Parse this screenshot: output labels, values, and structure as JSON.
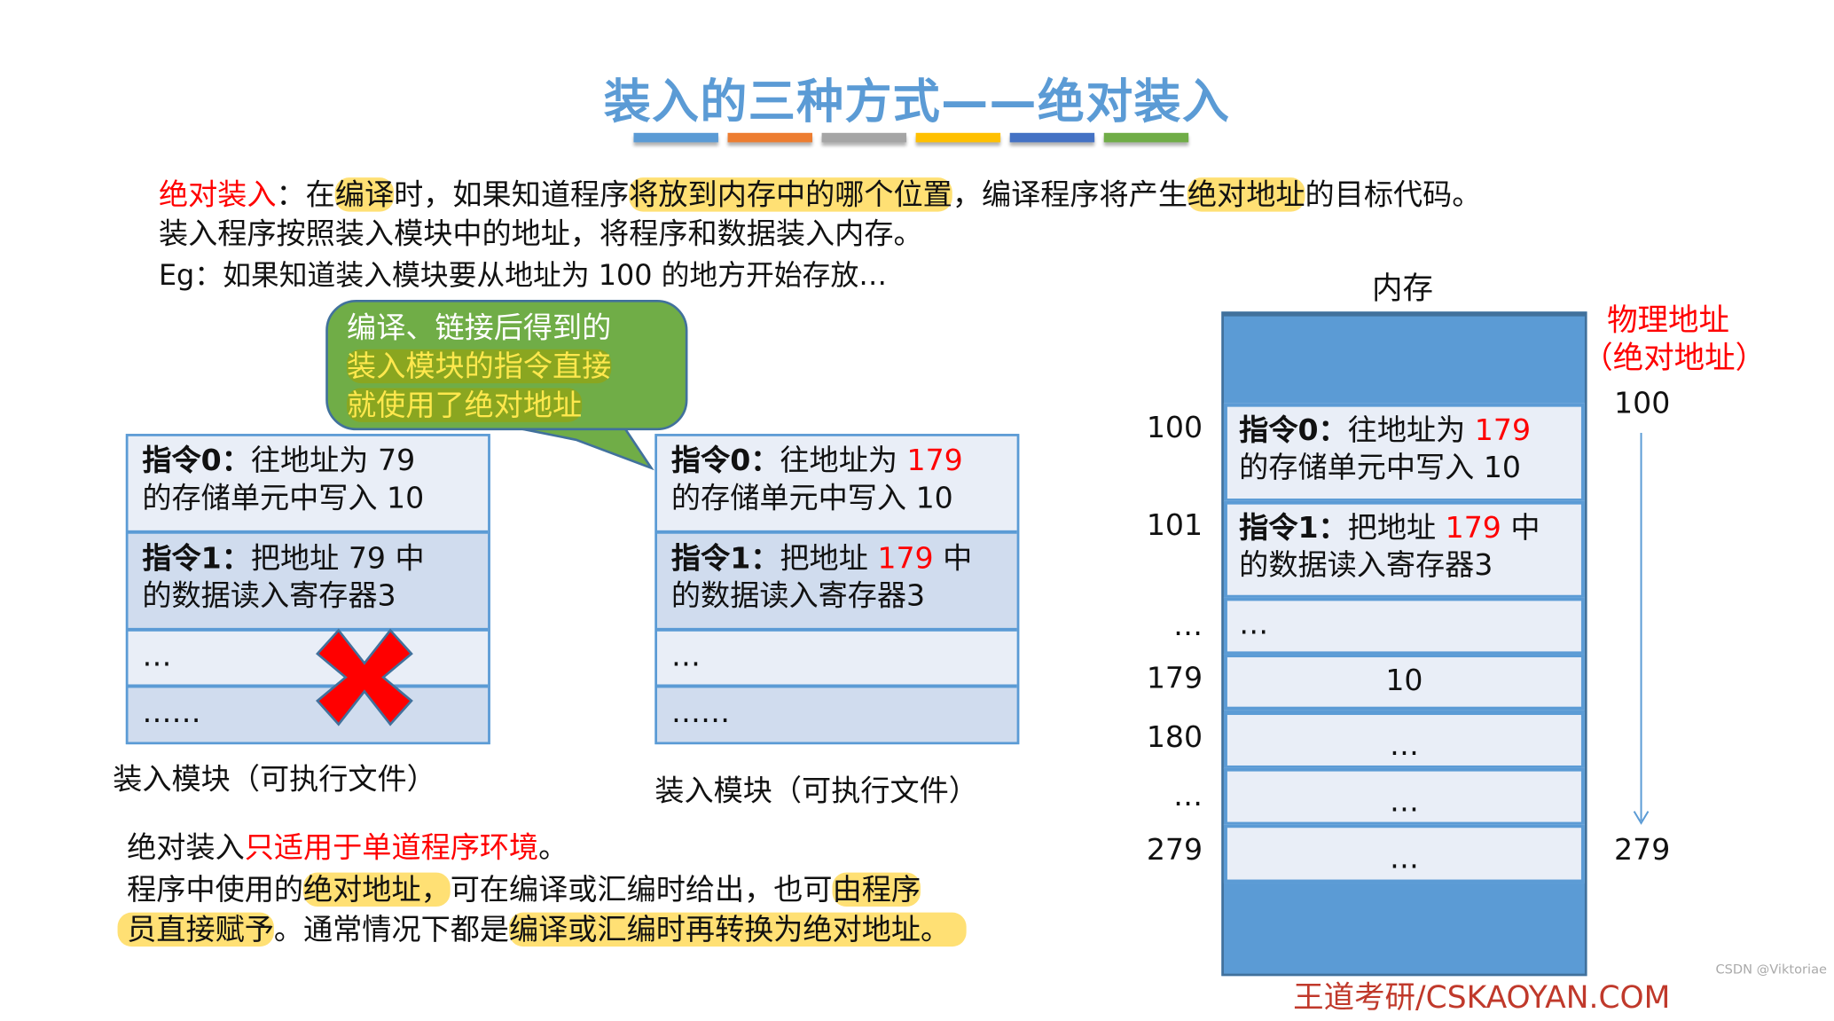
{
  "title": "装入的三种方式——绝对装入",
  "color_bars": [
    "#5b9bd5",
    "#ed7d31",
    "#a5a5a5",
    "#ffc000",
    "#4472c4",
    "#70ad47"
  ],
  "intro": {
    "line1": [
      {
        "text": "绝对装入",
        "style": "red"
      },
      {
        "text": "：在",
        "style": ""
      },
      {
        "text": "编译",
        "style": "hl"
      },
      {
        "text": "时，如果知道程序",
        "style": ""
      },
      {
        "text": "将放到内存中的哪个位置",
        "style": "hl"
      },
      {
        "text": "，编译程序将产生",
        "style": ""
      },
      {
        "text": "绝对地址",
        "style": "hl"
      },
      {
        "text": "的目标代码。",
        "style": ""
      }
    ],
    "line2": "装入程序按照装入模块中的地址，将程序和数据装入内存。",
    "line3": "Eg：如果知道装入模块要从地址为 100 的地方开始存放…"
  },
  "bubble": {
    "line1": "编译、链接后得到的",
    "line2": "装入模块的指令直接",
    "line3": "就使用了绝对地址"
  },
  "left_module": {
    "instr0_label": "指令0：",
    "instr0_text": "往地址为 79",
    "instr0_line2": "的存储单元中写入 10",
    "instr1_label": "指令1：",
    "instr1_text": "把地址 79 中",
    "instr1_line2": "的数据读入寄存器3",
    "row3": "…",
    "row4": "……",
    "caption": "装入模块（可执行文件）"
  },
  "right_module": {
    "instr0_label": "指令0：",
    "instr0_pre": "往地址为 ",
    "instr0_addr": "179",
    "instr0_line2": "的存储单元中写入 10",
    "instr1_label": "指令1：",
    "instr1_pre": "把地址 ",
    "instr1_addr": "179",
    "instr1_post": " 中",
    "instr1_line2": "的数据读入寄存器3",
    "row3": "…",
    "row4": "……",
    "caption": "装入模块（可执行文件）"
  },
  "memory": {
    "title": "内存",
    "phys_label1": "物理地址",
    "phys_label2": "（绝对地址）",
    "range_start": "100",
    "range_end": "279",
    "addresses": [
      "100",
      "101",
      "…",
      "179",
      "180",
      "…",
      "279"
    ],
    "cells": {
      "instr0_label": "指令0：",
      "instr0_pre": "往地址为 ",
      "instr0_addr": "179",
      "instr0_line2": "的存储单元中写入 10",
      "instr1_label": "指令1：",
      "instr1_pre": "把地址 ",
      "instr1_addr": "179",
      "instr1_post": " 中",
      "instr1_line2": "的数据读入寄存器3",
      "c2": "…",
      "c3": "10",
      "c4": "…",
      "c5": "…",
      "c6": "…"
    }
  },
  "bottom": {
    "line1_a": "绝对装入",
    "line1_b": "只适用于单道程序环境",
    "line1_c": "。",
    "line2_a": "程序中使用的",
    "line2_b": "绝对地址，",
    "line2_c": "可在编译或汇编时给出，也可",
    "line2_d": "由程序",
    "line3_a": "员直接赋予",
    "line3_b": "。通常情况下都是",
    "line3_c": "编译或汇编时再转换为绝对地址。"
  },
  "footer": "王道考研/CSKAOYAN.COM",
  "watermark": "CSDN @Viktoriae"
}
